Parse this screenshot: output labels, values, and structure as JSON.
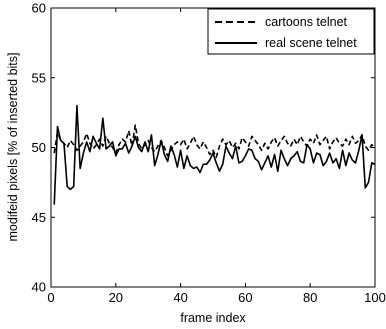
{
  "chart_data": {
    "type": "line",
    "title": "",
    "xlabel": "frame index",
    "ylabel": "modifeid pixels [% of inserted bits]",
    "xlim": [
      0,
      100
    ],
    "ylim": [
      40,
      60
    ],
    "xticks": [
      "0",
      "20",
      "40",
      "60",
      "80",
      "100"
    ],
    "yticks": [
      "40",
      "45",
      "50",
      "55",
      "60"
    ],
    "grid": false,
    "legend_position": "top-right",
    "series": [
      {
        "name": "cartoons telnet",
        "style": "dashed",
        "color": "#000000",
        "x": [
          1,
          2,
          3,
          4,
          5,
          6,
          7,
          8,
          9,
          10,
          11,
          12,
          13,
          14,
          15,
          16,
          17,
          18,
          19,
          20,
          21,
          22,
          23,
          24,
          25,
          26,
          27,
          28,
          29,
          30,
          31,
          32,
          33,
          34,
          35,
          36,
          37,
          38,
          39,
          40,
          41,
          42,
          43,
          44,
          45,
          46,
          47,
          48,
          49,
          50,
          51,
          52,
          53,
          54,
          55,
          56,
          57,
          58,
          59,
          60,
          61,
          62,
          63,
          64,
          65,
          66,
          67,
          68,
          69,
          70,
          71,
          72,
          73,
          74,
          75,
          76,
          77,
          78,
          79,
          80,
          81,
          82,
          83,
          84,
          85,
          86,
          87,
          88,
          89,
          90,
          91,
          92,
          93,
          94,
          95,
          96,
          97,
          98,
          99,
          100
        ],
        "values": [
          49.6,
          51.1,
          50.5,
          50.3,
          50.0,
          50.5,
          50.2,
          49.8,
          50.1,
          50.4,
          51.0,
          50.3,
          49.9,
          50.2,
          50.6,
          50.1,
          50.8,
          50.3,
          50.0,
          49.6,
          50.2,
          50.6,
          50.4,
          51.2,
          50.1,
          51.6,
          50.3,
          49.9,
          50.2,
          50.5,
          50.0,
          49.7,
          50.1,
          50.5,
          50.0,
          49.4,
          49.8,
          50.2,
          50.4,
          50.2,
          50.6,
          49.9,
          50.3,
          50.8,
          50.2,
          49.9,
          50.4,
          50.0,
          49.5,
          49.8,
          49.3,
          50.1,
          50.6,
          50.2,
          50.5,
          50.0,
          50.3,
          49.9,
          50.7,
          50.4,
          50.1,
          50.8,
          50.5,
          50.2,
          49.8,
          50.3,
          49.9,
          50.4,
          50.7,
          50.1,
          50.5,
          50.8,
          50.3,
          50.1,
          50.6,
          50.2,
          50.8,
          50.4,
          50.1,
          50.6,
          50.3,
          50.9,
          50.2,
          50.5,
          50.8,
          49.9,
          50.4,
          50.7,
          50.3,
          50.1,
          50.6,
          50.2,
          50.8,
          50.3,
          50.5,
          50.9,
          50.1,
          49.8,
          50.2,
          50.0
        ]
      },
      {
        "name": "real scene telnet",
        "style": "solid",
        "color": "#000000",
        "x": [
          1,
          2,
          3,
          4,
          5,
          6,
          7,
          8,
          9,
          10,
          11,
          12,
          13,
          14,
          15,
          16,
          17,
          18,
          19,
          20,
          21,
          22,
          23,
          24,
          25,
          26,
          27,
          28,
          29,
          30,
          31,
          32,
          33,
          34,
          35,
          36,
          37,
          38,
          39,
          40,
          41,
          42,
          43,
          44,
          45,
          46,
          47,
          48,
          49,
          50,
          51,
          52,
          53,
          54,
          55,
          56,
          57,
          58,
          59,
          60,
          61,
          62,
          63,
          64,
          65,
          66,
          67,
          68,
          69,
          70,
          71,
          72,
          73,
          74,
          75,
          76,
          77,
          78,
          79,
          80,
          81,
          82,
          83,
          84,
          85,
          86,
          87,
          88,
          89,
          90,
          91,
          92,
          93,
          94,
          95,
          96,
          97,
          98,
          99,
          100
        ],
        "values": [
          45.9,
          51.5,
          50.5,
          50.3,
          47.2,
          47.0,
          47.2,
          53.0,
          48.5,
          49.6,
          50.4,
          49.7,
          50.8,
          50.3,
          49.9,
          52.1,
          49.9,
          50.1,
          50.4,
          49.4,
          49.9,
          49.9,
          50.3,
          49.6,
          50.1,
          50.8,
          50.0,
          49.7,
          50.4,
          49.7,
          50.9,
          48.7,
          49.5,
          50.5,
          49.5,
          49.0,
          50.1,
          49.5,
          48.6,
          49.8,
          48.5,
          49.4,
          48.7,
          48.5,
          48.6,
          48.2,
          48.8,
          48.8,
          49.1,
          49.6,
          48.9,
          48.3,
          48.8,
          50.1,
          49.6,
          49.2,
          50.1,
          48.9,
          49.0,
          49.4,
          49.9,
          49.8,
          49.2,
          49.0,
          48.4,
          48.9,
          49.4,
          48.6,
          49.5,
          48.3,
          49.8,
          49.2,
          48.7,
          49.2,
          49.4,
          49.7,
          49.0,
          48.9,
          50.2,
          49.9,
          48.9,
          49.6,
          49.5,
          48.7,
          49.0,
          49.6,
          48.9,
          49.2,
          48.5,
          49.8,
          48.7,
          49.6,
          49.1,
          48.9,
          49.8,
          50.9,
          47.1,
          47.5,
          48.9,
          48.8
        ]
      }
    ]
  }
}
